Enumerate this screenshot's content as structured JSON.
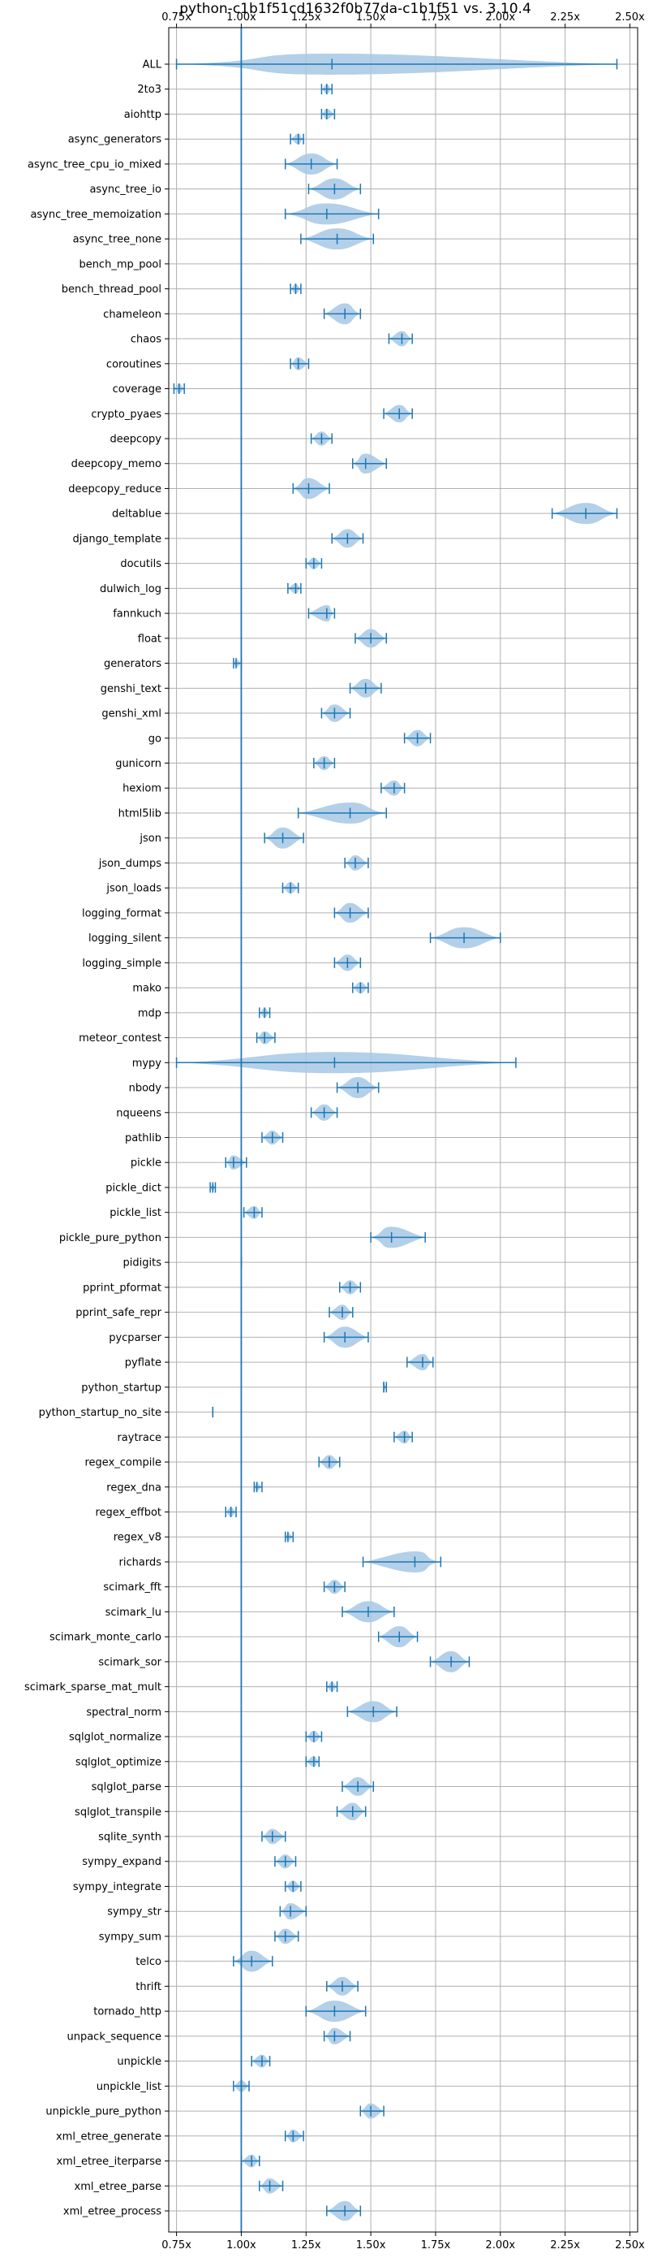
{
  "chart_data": {
    "type": "violin",
    "title": "python-c1b1f51cd1632f0b77da-c1b1f51 vs. 3.10.4",
    "xlabel": "",
    "ylabel": "",
    "xlim": [
      0.72,
      2.53
    ],
    "x_ticks": [
      0.75,
      1.0,
      1.25,
      1.5,
      1.75,
      2.0,
      2.25,
      2.5
    ],
    "x_tick_labels": [
      "0.75x",
      "1.00x",
      "1.25x",
      "1.50x",
      "1.75x",
      "2.00x",
      "2.25x",
      "2.50x"
    ],
    "x_ticks_top_and_bottom": true,
    "reference_line": 1.0,
    "grid": true,
    "colors": {
      "violin_fill": "#a6c8e4",
      "line": "#1f77b4",
      "grid": "#b0b0b0"
    },
    "benchmarks": [
      {
        "name": "ALL",
        "min": 0.75,
        "median": 1.35,
        "max": 2.45
      },
      {
        "name": "2to3",
        "min": 1.31,
        "median": 1.33,
        "max": 1.35
      },
      {
        "name": "aiohttp",
        "min": 1.31,
        "median": 1.33,
        "max": 1.36
      },
      {
        "name": "async_generators",
        "min": 1.19,
        "median": 1.22,
        "max": 1.24
      },
      {
        "name": "async_tree_cpu_io_mixed",
        "min": 1.17,
        "median": 1.27,
        "max": 1.37
      },
      {
        "name": "async_tree_io",
        "min": 1.26,
        "median": 1.36,
        "max": 1.46
      },
      {
        "name": "async_tree_memoization",
        "min": 1.17,
        "median": 1.33,
        "max": 1.53
      },
      {
        "name": "async_tree_none",
        "min": 1.23,
        "median": 1.37,
        "max": 1.51
      },
      {
        "name": "bench_mp_pool",
        "min": null,
        "median": null,
        "max": null
      },
      {
        "name": "bench_thread_pool",
        "min": 1.19,
        "median": 1.21,
        "max": 1.23
      },
      {
        "name": "chameleon",
        "min": 1.32,
        "median": 1.4,
        "max": 1.46
      },
      {
        "name": "chaos",
        "min": 1.57,
        "median": 1.62,
        "max": 1.66
      },
      {
        "name": "coroutines",
        "min": 1.19,
        "median": 1.22,
        "max": 1.26
      },
      {
        "name": "coverage",
        "min": 0.74,
        "median": 0.76,
        "max": 0.78
      },
      {
        "name": "crypto_pyaes",
        "min": 1.55,
        "median": 1.61,
        "max": 1.66
      },
      {
        "name": "deepcopy",
        "min": 1.27,
        "median": 1.31,
        "max": 1.35
      },
      {
        "name": "deepcopy_memo",
        "min": 1.43,
        "median": 1.48,
        "max": 1.56
      },
      {
        "name": "deepcopy_reduce",
        "min": 1.2,
        "median": 1.26,
        "max": 1.34
      },
      {
        "name": "deltablue",
        "min": 2.2,
        "median": 2.33,
        "max": 2.45
      },
      {
        "name": "django_template",
        "min": 1.35,
        "median": 1.41,
        "max": 1.47
      },
      {
        "name": "docutils",
        "min": 1.25,
        "median": 1.28,
        "max": 1.31
      },
      {
        "name": "dulwich_log",
        "min": 1.18,
        "median": 1.21,
        "max": 1.23
      },
      {
        "name": "fannkuch",
        "min": 1.26,
        "median": 1.33,
        "max": 1.36
      },
      {
        "name": "float",
        "min": 1.44,
        "median": 1.5,
        "max": 1.56
      },
      {
        "name": "generators",
        "min": 0.97,
        "median": 0.98,
        "max": 1.0
      },
      {
        "name": "genshi_text",
        "min": 1.42,
        "median": 1.48,
        "max": 1.54
      },
      {
        "name": "genshi_xml",
        "min": 1.31,
        "median": 1.36,
        "max": 1.42
      },
      {
        "name": "go",
        "min": 1.63,
        "median": 1.68,
        "max": 1.73
      },
      {
        "name": "gunicorn",
        "min": 1.28,
        "median": 1.32,
        "max": 1.36
      },
      {
        "name": "hexiom",
        "min": 1.54,
        "median": 1.59,
        "max": 1.63
      },
      {
        "name": "html5lib",
        "min": 1.22,
        "median": 1.42,
        "max": 1.56
      },
      {
        "name": "json",
        "min": 1.09,
        "median": 1.16,
        "max": 1.24
      },
      {
        "name": "json_dumps",
        "min": 1.4,
        "median": 1.44,
        "max": 1.49
      },
      {
        "name": "json_loads",
        "min": 1.16,
        "median": 1.19,
        "max": 1.22
      },
      {
        "name": "logging_format",
        "min": 1.36,
        "median": 1.42,
        "max": 1.49
      },
      {
        "name": "logging_silent",
        "min": 1.73,
        "median": 1.86,
        "max": 2.0
      },
      {
        "name": "logging_simple",
        "min": 1.36,
        "median": 1.41,
        "max": 1.46
      },
      {
        "name": "mako",
        "min": 1.43,
        "median": 1.46,
        "max": 1.49
      },
      {
        "name": "mdp",
        "min": 1.07,
        "median": 1.09,
        "max": 1.11
      },
      {
        "name": "meteor_contest",
        "min": 1.06,
        "median": 1.09,
        "max": 1.13
      },
      {
        "name": "mypy",
        "min": 0.75,
        "median": 1.36,
        "max": 2.06
      },
      {
        "name": "nbody",
        "min": 1.37,
        "median": 1.45,
        "max": 1.53
      },
      {
        "name": "nqueens",
        "min": 1.27,
        "median": 1.32,
        "max": 1.37
      },
      {
        "name": "pathlib",
        "min": 1.08,
        "median": 1.12,
        "max": 1.16
      },
      {
        "name": "pickle",
        "min": 0.94,
        "median": 0.97,
        "max": 1.02
      },
      {
        "name": "pickle_dict",
        "min": 0.88,
        "median": 0.89,
        "max": 0.9
      },
      {
        "name": "pickle_list",
        "min": 1.01,
        "median": 1.05,
        "max": 1.08
      },
      {
        "name": "pickle_pure_python",
        "min": 1.5,
        "median": 1.58,
        "max": 1.71
      },
      {
        "name": "pidigits",
        "min": 1.0,
        "median": 1.0,
        "max": 1.0
      },
      {
        "name": "pprint_pformat",
        "min": 1.38,
        "median": 1.42,
        "max": 1.46
      },
      {
        "name": "pprint_safe_repr",
        "min": 1.34,
        "median": 1.39,
        "max": 1.43
      },
      {
        "name": "pycparser",
        "min": 1.32,
        "median": 1.4,
        "max": 1.49
      },
      {
        "name": "pyflate",
        "min": 1.64,
        "median": 1.7,
        "max": 1.74
      },
      {
        "name": "python_startup",
        "min": 1.55,
        "median": 1.55,
        "max": 1.56
      },
      {
        "name": "python_startup_no_site",
        "min": 0.89,
        "median": 0.89,
        "max": 0.89
      },
      {
        "name": "raytrace",
        "min": 1.59,
        "median": 1.63,
        "max": 1.66
      },
      {
        "name": "regex_compile",
        "min": 1.3,
        "median": 1.34,
        "max": 1.38
      },
      {
        "name": "regex_dna",
        "min": 1.05,
        "median": 1.06,
        "max": 1.08
      },
      {
        "name": "regex_effbot",
        "min": 0.94,
        "median": 0.96,
        "max": 0.98
      },
      {
        "name": "regex_v8",
        "min": 1.17,
        "median": 1.18,
        "max": 1.2
      },
      {
        "name": "richards",
        "min": 1.47,
        "median": 1.67,
        "max": 1.77
      },
      {
        "name": "scimark_fft",
        "min": 1.32,
        "median": 1.36,
        "max": 1.4
      },
      {
        "name": "scimark_lu",
        "min": 1.39,
        "median": 1.49,
        "max": 1.59
      },
      {
        "name": "scimark_monte_carlo",
        "min": 1.53,
        "median": 1.61,
        "max": 1.68
      },
      {
        "name": "scimark_sor",
        "min": 1.73,
        "median": 1.81,
        "max": 1.88
      },
      {
        "name": "scimark_sparse_mat_mult",
        "min": 1.33,
        "median": 1.35,
        "max": 1.37
      },
      {
        "name": "spectral_norm",
        "min": 1.41,
        "median": 1.51,
        "max": 1.6
      },
      {
        "name": "sqlglot_normalize",
        "min": 1.25,
        "median": 1.28,
        "max": 1.31
      },
      {
        "name": "sqlglot_optimize",
        "min": 1.25,
        "median": 1.28,
        "max": 1.3
      },
      {
        "name": "sqlglot_parse",
        "min": 1.39,
        "median": 1.45,
        "max": 1.51
      },
      {
        "name": "sqlglot_transpile",
        "min": 1.37,
        "median": 1.43,
        "max": 1.48
      },
      {
        "name": "sqlite_synth",
        "min": 1.08,
        "median": 1.12,
        "max": 1.17
      },
      {
        "name": "sympy_expand",
        "min": 1.13,
        "median": 1.17,
        "max": 1.21
      },
      {
        "name": "sympy_integrate",
        "min": 1.17,
        "median": 1.2,
        "max": 1.23
      },
      {
        "name": "sympy_str",
        "min": 1.15,
        "median": 1.19,
        "max": 1.25
      },
      {
        "name": "sympy_sum",
        "min": 1.13,
        "median": 1.17,
        "max": 1.22
      },
      {
        "name": "telco",
        "min": 0.97,
        "median": 1.04,
        "max": 1.12
      },
      {
        "name": "thrift",
        "min": 1.33,
        "median": 1.39,
        "max": 1.45
      },
      {
        "name": "tornado_http",
        "min": 1.25,
        "median": 1.36,
        "max": 1.48
      },
      {
        "name": "unpack_sequence",
        "min": 1.32,
        "median": 1.36,
        "max": 1.42
      },
      {
        "name": "unpickle",
        "min": 1.04,
        "median": 1.08,
        "max": 1.11
      },
      {
        "name": "unpickle_list",
        "min": 0.97,
        "median": 1.0,
        "max": 1.03
      },
      {
        "name": "unpickle_pure_python",
        "min": 1.46,
        "median": 1.5,
        "max": 1.55
      },
      {
        "name": "xml_etree_generate",
        "min": 1.17,
        "median": 1.2,
        "max": 1.24
      },
      {
        "name": "xml_etree_iterparse",
        "min": 1.0,
        "median": 1.04,
        "max": 1.07
      },
      {
        "name": "xml_etree_parse",
        "min": 1.07,
        "median": 1.11,
        "max": 1.16
      },
      {
        "name": "xml_etree_process",
        "min": 1.33,
        "median": 1.4,
        "max": 1.46
      }
    ]
  }
}
